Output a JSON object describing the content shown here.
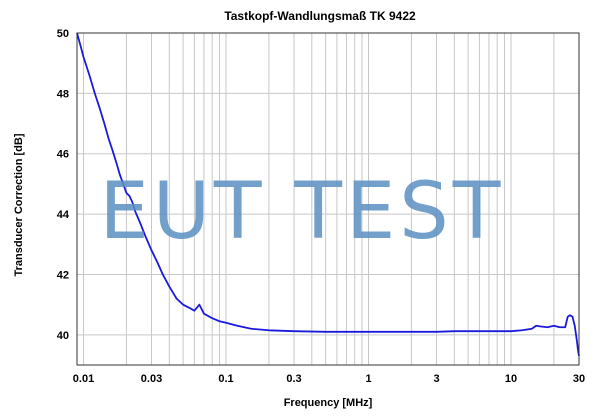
{
  "chart_data": {
    "type": "line",
    "title": "Tastkopf-Wandlungsmaß TK 9422",
    "xlabel": "Frequency [MHz]",
    "ylabel": "Transducer Correction [dB]",
    "x_scale": "log",
    "xlim": [
      0.009,
      30
    ],
    "ylim": [
      39,
      50
    ],
    "grid": true,
    "x_ticks": [
      {
        "value": 0.01,
        "label": "0.01"
      },
      {
        "value": 0.03,
        "label": "0.03"
      },
      {
        "value": 0.1,
        "label": "0.1"
      },
      {
        "value": 0.3,
        "label": "0.3"
      },
      {
        "value": 1,
        "label": "1"
      },
      {
        "value": 3,
        "label": "3"
      },
      {
        "value": 10,
        "label": "10"
      },
      {
        "value": 30,
        "label": "30"
      }
    ],
    "y_ticks": [
      {
        "value": 40,
        "label": "40"
      },
      {
        "value": 42,
        "label": "42"
      },
      {
        "value": 44,
        "label": "44"
      },
      {
        "value": 46,
        "label": "46"
      },
      {
        "value": 48,
        "label": "48"
      },
      {
        "value": 50,
        "label": "50"
      }
    ],
    "series_color": "#1a1adc",
    "series": [
      {
        "x": [
          0.009,
          0.0095,
          0.01,
          0.011,
          0.012,
          0.013,
          0.014,
          0.015,
          0.016,
          0.017,
          0.018,
          0.019,
          0.02,
          0.021,
          0.022,
          0.023,
          0.025,
          0.027,
          0.03,
          0.033,
          0.036,
          0.04,
          0.045,
          0.05,
          0.055,
          0.06,
          0.065,
          0.07,
          0.08,
          0.09,
          0.1,
          0.12,
          0.15,
          0.2,
          0.3,
          0.5,
          0.7,
          1,
          1.5,
          2,
          3,
          4,
          5,
          7,
          10,
          12,
          14,
          15,
          16,
          18,
          20,
          22,
          24,
          25,
          26,
          27,
          28,
          29,
          29.5,
          30
        ],
        "y": [
          50.0,
          49.6,
          49.2,
          48.6,
          48.0,
          47.5,
          47.0,
          46.5,
          46.1,
          45.7,
          45.3,
          45.0,
          44.7,
          44.6,
          44.4,
          44.1,
          43.7,
          43.3,
          42.8,
          42.4,
          42.0,
          41.6,
          41.2,
          41.0,
          40.9,
          40.8,
          41.0,
          40.7,
          40.55,
          40.45,
          40.4,
          40.3,
          40.2,
          40.15,
          40.12,
          40.1,
          40.1,
          40.1,
          40.1,
          40.1,
          40.1,
          40.12,
          40.12,
          40.12,
          40.12,
          40.15,
          40.2,
          40.3,
          40.28,
          40.25,
          40.3,
          40.25,
          40.25,
          40.6,
          40.65,
          40.6,
          40.3,
          39.8,
          39.5,
          39.3
        ]
      }
    ]
  },
  "watermark_text": "EUT TEST"
}
